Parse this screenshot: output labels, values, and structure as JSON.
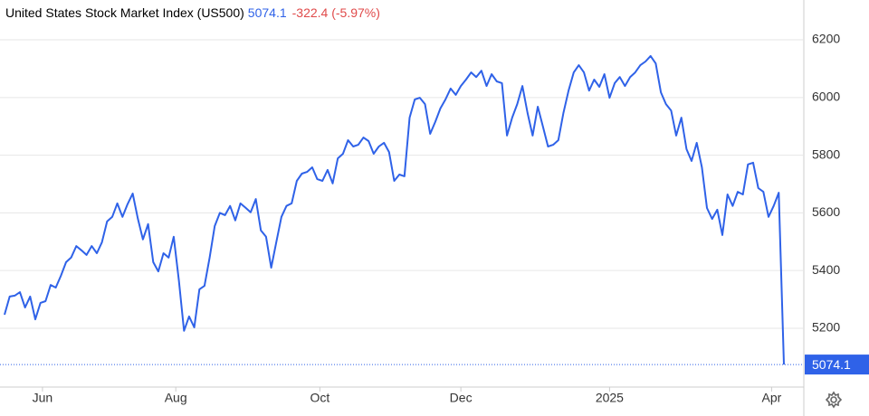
{
  "chart_data": {
    "type": "line",
    "title": "United States Stock Market Index (US500)",
    "change": "-322.4 (-5.97%)",
    "series": [
      {
        "name": "US500",
        "color": "#2f62e8",
        "values": [
          5247,
          5310,
          5313,
          5325,
          5272,
          5310,
          5231,
          5288,
          5294,
          5350,
          5341,
          5382,
          5429,
          5445,
          5485,
          5470,
          5454,
          5485,
          5460,
          5498,
          5570,
          5586,
          5633,
          5586,
          5630,
          5667,
          5580,
          5508,
          5561,
          5429,
          5397,
          5460,
          5445,
          5517,
          5366,
          5191,
          5241,
          5203,
          5335,
          5347,
          5445,
          5554,
          5600,
          5592,
          5624,
          5574,
          5633,
          5618,
          5602,
          5648,
          5539,
          5517,
          5410,
          5498,
          5586,
          5624,
          5633,
          5711,
          5736,
          5742,
          5758,
          5717,
          5711,
          5749,
          5702,
          5789,
          5805,
          5852,
          5830,
          5836,
          5861,
          5849,
          5805,
          5830,
          5843,
          5811,
          5711,
          5733,
          5727,
          5930,
          5993,
          5999,
          5977,
          5874,
          5915,
          5962,
          5993,
          6031,
          6009,
          6040,
          6062,
          6087,
          6071,
          6093,
          6040,
          6081,
          6056,
          6050,
          5868,
          5930,
          5977,
          6040,
          5946,
          5868,
          5968,
          5899,
          5830,
          5836,
          5852,
          5946,
          6024,
          6087,
          6112,
          6087,
          6024,
          6062,
          6037,
          6081,
          5999,
          6050,
          6071,
          6040,
          6071,
          6087,
          6112,
          6125,
          6144,
          6118,
          6018,
          5977,
          5955,
          5868,
          5930,
          5821,
          5780,
          5843,
          5758,
          5617,
          5579,
          5611,
          5523,
          5664,
          5624,
          5673,
          5664,
          5768,
          5774,
          5686,
          5673,
          5586,
          5624,
          5670,
          5074.1
        ]
      }
    ],
    "xlim": [
      0,
      152
    ],
    "xticks": [
      {
        "value": 7.4,
        "label": "Jun"
      },
      {
        "value": 33.4,
        "label": "Aug"
      },
      {
        "value": 61.5,
        "label": "Oct"
      },
      {
        "value": 89,
        "label": "Dec"
      },
      {
        "value": 118,
        "label": "2025"
      },
      {
        "value": 149.6,
        "label": "Apr"
      }
    ],
    "ylim": [
      4996,
      6244
    ],
    "yticks": [
      5200,
      5400,
      5600,
      5800,
      6000,
      6200
    ],
    "grid": true
  }
}
